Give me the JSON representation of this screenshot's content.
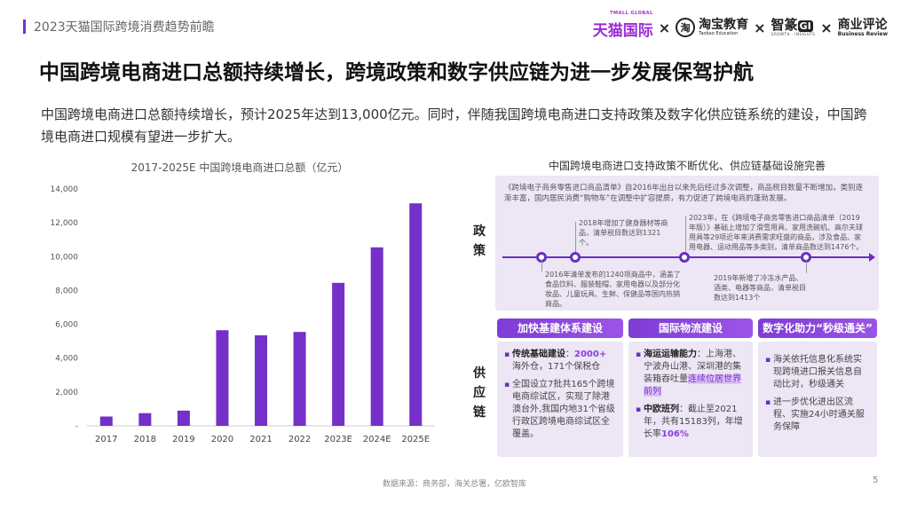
{
  "header": {
    "report_title": "2023天猫国际跨境消费趋势前瞻",
    "logos": {
      "tmall": "天猫国际",
      "tmall_sub": "TMALL GLOBAL",
      "separator": "×",
      "taobao_icon": "淘",
      "taobao_zh": "淘宝教育",
      "taobao_en": "Taobao Education",
      "zhizuan_zh": "智篆",
      "zhizuan_gi": "GI",
      "zhizuan_en": "GROWTH · INSIGHTS",
      "biz_zh": "商业评论",
      "biz_en": "Business Review"
    }
  },
  "headline": "中国跨境电商进口总额持续增长，跨境政策和数字供应链为进一步发展保驾护航",
  "summary": "中国跨境电商进口总额持续增长，预计2025年达到13,000亿元。同时，伴随我国跨境电商进口支持政策及数字化供应链系统的建设，中国跨境电商进口规模有望进一步扩大。",
  "chart_data": {
    "type": "bar",
    "title": "2017-2025E 中国跨境电商进口总额（亿元）",
    "categories": [
      "2017",
      "2018",
      "2019",
      "2020",
      "2021",
      "2022",
      "2023E",
      "2024E",
      "2025E"
    ],
    "values": [
      550,
      750,
      900,
      5650,
      5350,
      5550,
      8450,
      10550,
      13150
    ],
    "ylim": [
      0,
      14000
    ],
    "yticks": [
      "-",
      "2,000",
      "4,000",
      "6,000",
      "8,000",
      "10,000",
      "12,000",
      "14,000"
    ],
    "xlabel": "",
    "ylabel": "",
    "grid": false,
    "bar_color": "#7430c8"
  },
  "policy": {
    "title": "中国跨境电商进口支持政策不断优化、供应链基础设施完善",
    "side_label": [
      "政",
      "策"
    ],
    "intro": "《跨境电子商务零售进口商品清单》自2016年出台以来先后经过多次调整，商品税目数量不断增加，类别逐渐丰富，国内居民消费“购物车”在调整中扩容提质，有力促进了跨境电商的蓬勃发展。",
    "events": [
      "2018年增加了健身器材等商品，清单税目数达到1321个。",
      "2023年，在《跨境电子商务零售进口商品清单（2019年版）》基础上增加了滑雪用具、家用洗碗机、高尔夫球用具等29项近年来消费需求旺盛的商品，涉及食品、家用电器、运动用品等多类别，清单商品数达到1476个。",
      "2016年清单发布的1240项商品中，涵盖了食品饮料、服装鞋帽、家用电器以及部分化妆品、儿童玩具、生鲜、保健品等国内热销商品。",
      "2019年新增了冷冻水产品、酒类、电器等商品，清单税目数达到1413个"
    ]
  },
  "supply": {
    "side_label": [
      "供",
      "应",
      "链"
    ],
    "cards": [
      {
        "title": "加快基建体系建设",
        "items": [
          {
            "label": "传统基础建设",
            "sep": "：",
            "value": "2000+",
            "rest": "海外仓，171个保税仓"
          },
          {
            "text": "全国设立7批共165个跨境电商综试区，实现了除港澳台外,我国内地31个省级行政区跨境电商综试区全覆盖。"
          }
        ]
      },
      {
        "title": "国际物流建设",
        "items": [
          {
            "label": "海运运输能力",
            "sep": "：",
            "text": "上海港、宁波舟山港、深圳港的集装箱吞吐量",
            "highlight": "连续位居世界前列"
          },
          {
            "label": "中欧班列",
            "sep": "：",
            "text": "截止至2021年，共有15183列，年增长率",
            "value": "106%"
          }
        ]
      },
      {
        "title": "数字化助力“秒级通关”",
        "items": [
          {
            "text": "海关依托信息化系统实现跨境进口报关信息自动比对，秒级通关"
          },
          {
            "text": "进一步优化进出区流程、实施24小时通关服务保障"
          }
        ]
      }
    ]
  },
  "footer": {
    "source": "数据来源：商务部，海关总署，亿欧智库",
    "page": "5"
  }
}
